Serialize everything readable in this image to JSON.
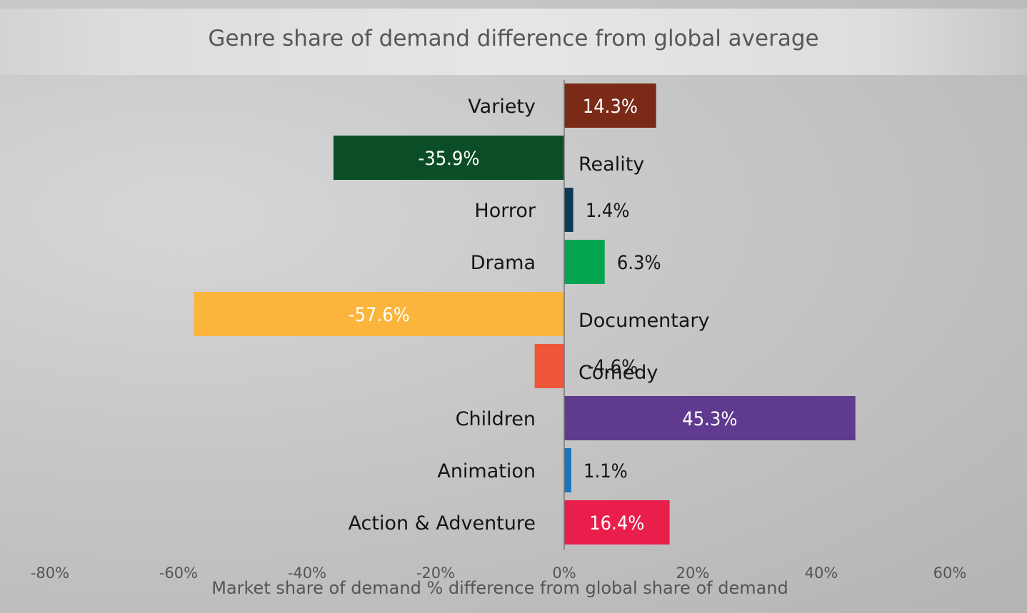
{
  "chart_data": {
    "type": "bar",
    "orientation": "horizontal",
    "title": "Genre share of demand difference from global average",
    "xlabel": "Market share of demand % difference from global share of demand",
    "ylabel": "",
    "xlim": [
      -80,
      60
    ],
    "x_ticks": [
      "-80%",
      "-60%",
      "-40%",
      "-20%",
      "0%",
      "20%",
      "40%",
      "60%"
    ],
    "x_tick_values": [
      -80,
      -60,
      -40,
      -20,
      0,
      20,
      40,
      60
    ],
    "grid": false,
    "legend": "none",
    "categories": [
      "Variety",
      "Reality",
      "Horror",
      "Drama",
      "Documentary",
      "Comedy",
      "Children",
      "Animation",
      "Action & Adventure"
    ],
    "values": [
      14.3,
      -35.9,
      1.4,
      6.3,
      -57.6,
      -4.6,
      45.3,
      1.1,
      16.4
    ],
    "data_labels": [
      "14.3%",
      "-35.9%",
      "1.4%",
      "6.3%",
      "-57.6%",
      "-4.6%",
      "45.3%",
      "1.1%",
      "16.4%"
    ],
    "colors": [
      "#7a2a17",
      "#0b4d26",
      "#0f3a55",
      "#04a550",
      "#fbb53c",
      "#ee573a",
      "#5f3a8e",
      "#1b75bb",
      "#e91e4b"
    ],
    "label_colors": [
      "#ffffff",
      "#ffffff",
      "#151515",
      "#151515",
      "#ffffff",
      "#151515",
      "#ffffff",
      "#151515",
      "#ffffff"
    ]
  }
}
